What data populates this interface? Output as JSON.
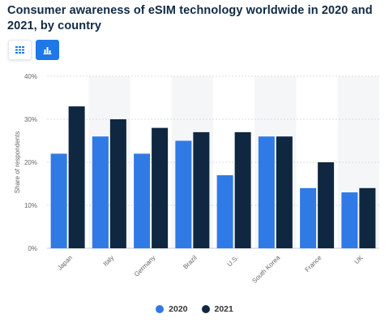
{
  "header": {
    "title": "Consumer awareness of eSIM technology worldwide in 2020 and 2021, by country"
  },
  "toolbar": {
    "table_view_icon": "table-grid-icon",
    "chart_view_icon": "bar-chart-icon",
    "active_color": "#1f78e8"
  },
  "chart_data": {
    "type": "bar",
    "title": "Consumer awareness of eSIM technology worldwide in 2020 and 2021, by country",
    "xlabel": "",
    "ylabel": "Share of respondents",
    "categories": [
      "Japan",
      "Italy",
      "Germany",
      "Brazil",
      "U.S.",
      "South Korea",
      "France",
      "UK"
    ],
    "series": [
      {
        "name": "2020",
        "color": "#2f7ae5",
        "values": [
          22,
          26,
          22,
          25,
          17,
          26,
          14,
          13
        ]
      },
      {
        "name": "2021",
        "color": "#0f2741",
        "values": [
          33,
          30,
          28,
          27,
          27,
          26,
          20,
          14
        ]
      }
    ],
    "ylim": [
      0,
      40
    ],
    "yticks": [
      0,
      10,
      20,
      30,
      40
    ],
    "ytick_labels": [
      "0%",
      "10%",
      "20%",
      "30%",
      "40%"
    ],
    "grid": true,
    "legend_position": "bottom"
  }
}
